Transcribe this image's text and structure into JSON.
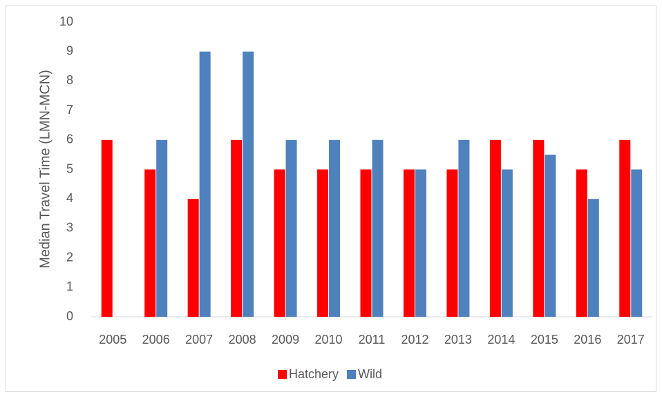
{
  "chart_data": {
    "type": "bar",
    "y_label": "Median Travel Time (LMN-MCN)",
    "categories": [
      "2005",
      "2006",
      "2007",
      "2008",
      "2009",
      "2010",
      "2011",
      "2012",
      "2013",
      "2014",
      "2015",
      "2016",
      "2017"
    ],
    "series": [
      {
        "name": "Hatchery",
        "color": "#ff0000",
        "values": [
          6,
          5,
          4,
          6,
          5,
          5,
          5,
          5,
          5,
          6,
          6,
          5,
          6
        ]
      },
      {
        "name": "Wild",
        "color": "#4f81bd",
        "values": [
          null,
          6,
          9,
          9,
          6,
          6,
          6,
          5,
          6,
          5,
          5.5,
          4,
          5
        ]
      }
    ],
    "ylim": [
      0,
      10
    ],
    "yticks": [
      0,
      1,
      2,
      3,
      4,
      5,
      6,
      7,
      8,
      9,
      10
    ],
    "grid": false,
    "legend": "bottom"
  }
}
